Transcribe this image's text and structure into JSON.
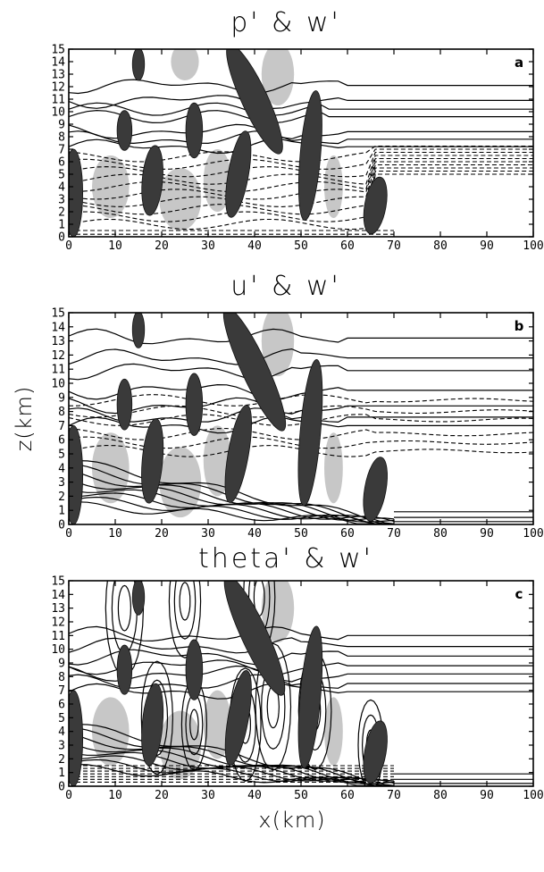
{
  "chart_data": [
    {
      "type": "contour",
      "panel_label": "a",
      "title": "p' & w'",
      "xlabel": "",
      "ylabel": "",
      "xlim": [
        0,
        100
      ],
      "ylim": [
        0,
        15
      ],
      "x_ticks": [
        0,
        10,
        20,
        30,
        40,
        50,
        60,
        70,
        80,
        90,
        100
      ],
      "y_ticks": [
        0,
        1,
        2,
        3,
        4,
        5,
        6,
        7,
        8,
        9,
        10,
        11,
        12,
        13,
        14,
        15
      ],
      "updrafts": [
        {
          "x": 1,
          "z": 3.5,
          "rx": 2,
          "rz": 3.5,
          "tilt": 0
        },
        {
          "x": 12,
          "z": 8.5,
          "rx": 1.6,
          "rz": 1.6,
          "tilt": 0
        },
        {
          "x": 18,
          "z": 4.5,
          "rx": 2.2,
          "rz": 2.8,
          "tilt": 5
        },
        {
          "x": 27,
          "z": 8.5,
          "rx": 1.8,
          "rz": 2.2,
          "tilt": 0
        },
        {
          "x": 15,
          "z": 13.8,
          "rx": 1.3,
          "rz": 1.3,
          "tilt": 0
        },
        {
          "x": 36.5,
          "z": 5,
          "rx": 2.2,
          "rz": 3.5,
          "tilt": 10
        },
        {
          "x": 40,
          "z": 11,
          "rx": 2.8,
          "rz": 4.8,
          "tilt": -25
        },
        {
          "x": 52,
          "z": 6.5,
          "rx": 2.2,
          "rz": 5.2,
          "tilt": 5
        },
        {
          "x": 66,
          "z": 2.5,
          "rx": 2.3,
          "rz": 2.3,
          "tilt": 10
        }
      ],
      "downdrafts": [
        {
          "x": 9,
          "z": 4,
          "rx": 4,
          "rz": 2.5
        },
        {
          "x": 24,
          "z": 3,
          "rx": 4.5,
          "rz": 2.5
        },
        {
          "x": 32,
          "z": 4.5,
          "rx": 3,
          "rz": 2.5
        },
        {
          "x": 45,
          "z": 13,
          "rx": 3.5,
          "rz": 2.5
        },
        {
          "x": 57,
          "z": 4,
          "rx": 2,
          "rz": 2.5
        },
        {
          "x": 25,
          "z": 14,
          "rx": 3,
          "rz": 1.5
        }
      ]
    },
    {
      "type": "contour",
      "panel_label": "b",
      "title": "u' & w'",
      "xlabel": "",
      "ylabel": "z(km)",
      "xlim": [
        0,
        100
      ],
      "ylim": [
        0,
        15
      ],
      "x_ticks": [
        0,
        10,
        20,
        30,
        40,
        50,
        60,
        70,
        80,
        90,
        100
      ],
      "y_ticks": [
        0,
        1,
        2,
        3,
        4,
        5,
        6,
        7,
        8,
        9,
        10,
        11,
        12,
        13,
        14,
        15
      ],
      "updrafts": [
        {
          "x": 1,
          "z": 3.5,
          "rx": 2,
          "rz": 3.5,
          "tilt": 0
        },
        {
          "x": 12,
          "z": 8.5,
          "rx": 1.6,
          "rz": 1.8,
          "tilt": 0
        },
        {
          "x": 18,
          "z": 4.5,
          "rx": 2.2,
          "rz": 3,
          "tilt": 5
        },
        {
          "x": 27,
          "z": 8.5,
          "rx": 1.8,
          "rz": 2.2,
          "tilt": 0
        },
        {
          "x": 15,
          "z": 13.8,
          "rx": 1.3,
          "rz": 1.3,
          "tilt": 0
        },
        {
          "x": 36.5,
          "z": 5,
          "rx": 2.2,
          "rz": 3.5,
          "tilt": 10
        },
        {
          "x": 40,
          "z": 11,
          "rx": 2.8,
          "rz": 4.8,
          "tilt": -25
        },
        {
          "x": 52,
          "z": 6.5,
          "rx": 2.2,
          "rz": 5.2,
          "tilt": 5
        },
        {
          "x": 66,
          "z": 2.5,
          "rx": 2.3,
          "rz": 2.3,
          "tilt": 10
        }
      ],
      "downdrafts": [
        {
          "x": 9,
          "z": 4,
          "rx": 4,
          "rz": 2.5
        },
        {
          "x": 24,
          "z": 3,
          "rx": 4.5,
          "rz": 2.5
        },
        {
          "x": 32,
          "z": 4.5,
          "rx": 3,
          "rz": 2.5
        },
        {
          "x": 45,
          "z": 13,
          "rx": 3.5,
          "rz": 2.5
        },
        {
          "x": 57,
          "z": 4,
          "rx": 2,
          "rz": 2.5
        }
      ]
    },
    {
      "type": "contour",
      "panel_label": "c",
      "title": "theta' & w'",
      "xlabel": "x(km)",
      "ylabel": "",
      "xlim": [
        0,
        100
      ],
      "ylim": [
        0,
        15
      ],
      "x_ticks": [
        0,
        10,
        20,
        30,
        40,
        50,
        60,
        70,
        80,
        90,
        100
      ],
      "y_ticks": [
        0,
        1,
        2,
        3,
        4,
        5,
        6,
        7,
        8,
        9,
        10,
        11,
        12,
        13,
        14,
        15
      ],
      "updrafts": [
        {
          "x": 1,
          "z": 3.5,
          "rx": 2,
          "rz": 3.5,
          "tilt": 0
        },
        {
          "x": 12,
          "z": 8.5,
          "rx": 1.6,
          "rz": 1.8,
          "tilt": 0
        },
        {
          "x": 18,
          "z": 4.5,
          "rx": 2.2,
          "rz": 3,
          "tilt": 5
        },
        {
          "x": 27,
          "z": 8.5,
          "rx": 1.8,
          "rz": 2.2,
          "tilt": 0
        },
        {
          "x": 15,
          "z": 13.8,
          "rx": 1.3,
          "rz": 1.3,
          "tilt": 0
        },
        {
          "x": 36.5,
          "z": 5,
          "rx": 2.2,
          "rz": 3.5,
          "tilt": 10
        },
        {
          "x": 40,
          "z": 11,
          "rx": 2.8,
          "rz": 4.8,
          "tilt": -25
        },
        {
          "x": 52,
          "z": 6.5,
          "rx": 2.2,
          "rz": 5.2,
          "tilt": 5
        },
        {
          "x": 66,
          "z": 2.5,
          "rx": 2.3,
          "rz": 2.3,
          "tilt": 10
        }
      ],
      "downdrafts": [
        {
          "x": 9,
          "z": 4,
          "rx": 4,
          "rz": 2.5
        },
        {
          "x": 24,
          "z": 3,
          "rx": 4.5,
          "rz": 2.5
        },
        {
          "x": 32,
          "z": 4.5,
          "rx": 3,
          "rz": 2.5
        },
        {
          "x": 45,
          "z": 13,
          "rx": 3.5,
          "rz": 2.5
        },
        {
          "x": 57,
          "z": 4,
          "rx": 2,
          "rz": 2.5
        }
      ]
    }
  ],
  "colors": {
    "updraft_fill": "#3a3a3a",
    "downdraft_fill": "#bdbdbd",
    "contour_line": "#000000",
    "background": "#ffffff"
  }
}
